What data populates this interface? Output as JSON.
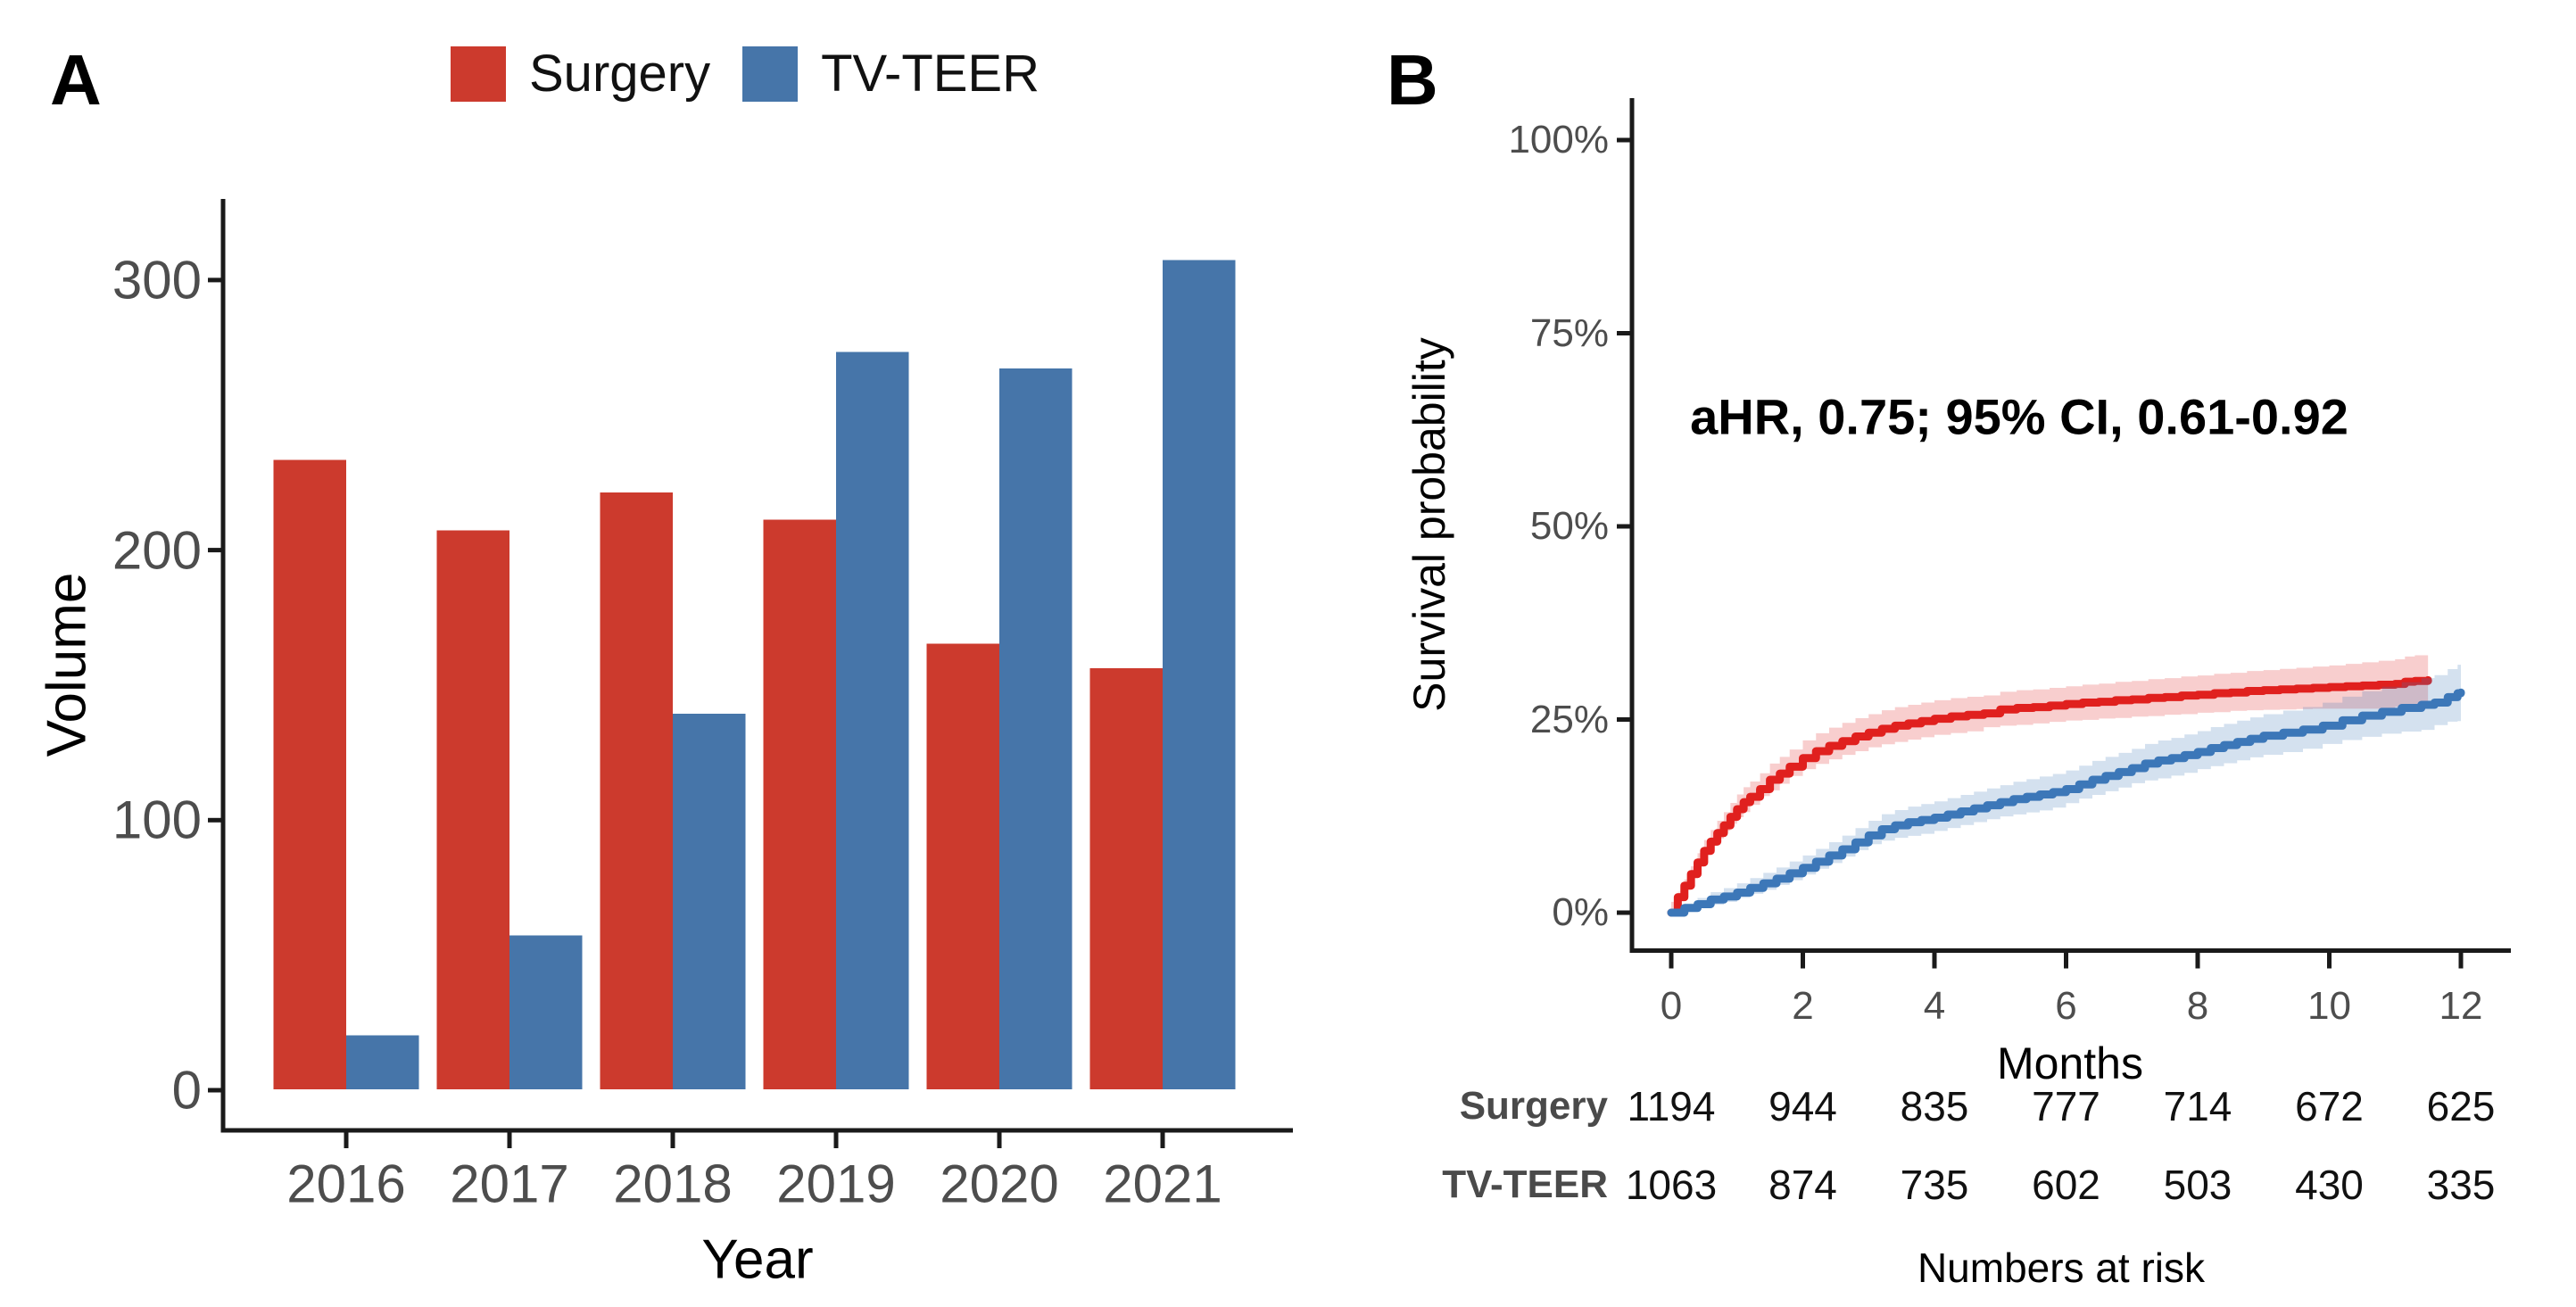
{
  "panels": {
    "a_label": "A",
    "b_label": "B"
  },
  "chart_data": [
    {
      "id": "volume-by-year",
      "type": "bar",
      "categories": [
        "2016",
        "2017",
        "2018",
        "2019",
        "2020",
        "2021"
      ],
      "series": [
        {
          "name": "Surgery",
          "color": "#CC3A2D",
          "values": [
            233,
            207,
            221,
            211,
            165,
            156
          ]
        },
        {
          "name": "TV-TEER",
          "color": "#4675A9",
          "values": [
            20,
            57,
            139,
            273,
            267,
            307
          ]
        }
      ],
      "xlabel": "Year",
      "ylabel": "Volume",
      "yticks": [
        0,
        100,
        200,
        300
      ],
      "ylim": [
        0,
        345
      ],
      "grid": false,
      "legend_position": "top"
    },
    {
      "id": "survival-by-months",
      "type": "line",
      "subtype": "kaplan-meier-step",
      "xlabel": "Months",
      "ylabel": "Survival probability",
      "annotation": "aHR, 0.75; 95% CI, 0.61-0.92",
      "xticks": [
        0,
        2,
        4,
        6,
        8,
        10,
        12
      ],
      "ytick_values": [
        0,
        25,
        50,
        75,
        100
      ],
      "ytick_labels": [
        "0%",
        "25%",
        "50%",
        "75%",
        "100%"
      ],
      "xlim": [
        0,
        12.8
      ],
      "ylim": [
        0,
        110
      ],
      "grid": false,
      "series": [
        {
          "name": "Surgery",
          "color": "#E0201E",
          "ci_color": "rgba(224,32,30,0.22)",
          "points": [
            [
              0,
              0
            ],
            [
              0.1,
              2
            ],
            [
              0.2,
              3.5
            ],
            [
              0.3,
              5
            ],
            [
              0.4,
              6.5
            ],
            [
              0.5,
              8
            ],
            [
              0.6,
              9.2
            ],
            [
              0.7,
              10.3
            ],
            [
              0.8,
              11.3
            ],
            [
              0.9,
              12.4
            ],
            [
              1,
              13.4
            ],
            [
              1.1,
              14.3
            ],
            [
              1.2,
              15
            ],
            [
              1.35,
              16
            ],
            [
              1.5,
              17.2
            ],
            [
              1.65,
              18
            ],
            [
              1.8,
              18.9
            ],
            [
              2,
              20
            ],
            [
              2.2,
              20.9
            ],
            [
              2.4,
              21.6
            ],
            [
              2.6,
              22.2
            ],
            [
              2.8,
              22.8
            ],
            [
              3,
              23.3
            ],
            [
              3.2,
              23.8
            ],
            [
              3.4,
              24.2
            ],
            [
              3.6,
              24.5
            ],
            [
              3.8,
              24.8
            ],
            [
              4,
              25.1
            ],
            [
              4.25,
              25.4
            ],
            [
              4.5,
              25.6
            ],
            [
              4.75,
              25.8
            ],
            [
              5,
              26.3
            ],
            [
              5.25,
              26.5
            ],
            [
              5.5,
              26.6
            ],
            [
              5.75,
              26.8
            ],
            [
              6,
              27
            ],
            [
              6.25,
              27.2
            ],
            [
              6.5,
              27.3
            ],
            [
              6.75,
              27.5
            ],
            [
              7,
              27.6
            ],
            [
              7.25,
              27.8
            ],
            [
              7.5,
              27.9
            ],
            [
              7.75,
              28.1
            ],
            [
              8,
              28.2
            ],
            [
              8.25,
              28.4
            ],
            [
              8.5,
              28.5
            ],
            [
              8.75,
              28.7
            ],
            [
              9,
              28.8
            ],
            [
              9.25,
              28.9
            ],
            [
              9.5,
              29
            ],
            [
              9.75,
              29.1
            ],
            [
              10,
              29.2
            ],
            [
              10.25,
              29.3
            ],
            [
              10.5,
              29.4
            ],
            [
              10.75,
              29.5
            ],
            [
              11,
              29.6
            ],
            [
              11.15,
              29.9
            ],
            [
              11.3,
              30
            ],
            [
              11.5,
              30.1
            ]
          ],
          "ci_halfwidth": [
            [
              0,
              0.4
            ],
            [
              0.5,
              1.4
            ],
            [
              1,
              1.9
            ],
            [
              1.5,
              2.1
            ],
            [
              2,
              2.3
            ],
            [
              3,
              2.4
            ],
            [
              4,
              2.4
            ],
            [
              5,
              2.3
            ],
            [
              6,
              2.3
            ],
            [
              7,
              2.4
            ],
            [
              8,
              2.5
            ],
            [
              9,
              2.6
            ],
            [
              10,
              2.8
            ],
            [
              10.5,
              3.0
            ],
            [
              11,
              3.2
            ],
            [
              11.5,
              3.4
            ]
          ]
        },
        {
          "name": "TV-TEER",
          "color": "#3C77B8",
          "ci_color": "rgba(60,119,184,0.22)",
          "points": [
            [
              0,
              0
            ],
            [
              0.2,
              0.6
            ],
            [
              0.4,
              1.1
            ],
            [
              0.6,
              1.7
            ],
            [
              0.8,
              2.1
            ],
            [
              1,
              2.6
            ],
            [
              1.2,
              3.2
            ],
            [
              1.4,
              3.8
            ],
            [
              1.6,
              4.4
            ],
            [
              1.8,
              5.1
            ],
            [
              2,
              5.8
            ],
            [
              2.2,
              6.6
            ],
            [
              2.4,
              7.4
            ],
            [
              2.6,
              8.2
            ],
            [
              2.8,
              9.1
            ],
            [
              3,
              10
            ],
            [
              3.2,
              10.8
            ],
            [
              3.4,
              11.3
            ],
            [
              3.6,
              11.7
            ],
            [
              3.8,
              12
            ],
            [
              4,
              12.3
            ],
            [
              4.2,
              12.7
            ],
            [
              4.4,
              13.1
            ],
            [
              4.6,
              13.5
            ],
            [
              4.8,
              13.9
            ],
            [
              5,
              14.3
            ],
            [
              5.2,
              14.7
            ],
            [
              5.4,
              15
            ],
            [
              5.6,
              15.3
            ],
            [
              5.8,
              15.6
            ],
            [
              6,
              16
            ],
            [
              6.2,
              16.6
            ],
            [
              6.4,
              17.2
            ],
            [
              6.6,
              17.7
            ],
            [
              6.8,
              18.2
            ],
            [
              7,
              18.7
            ],
            [
              7.2,
              19.3
            ],
            [
              7.4,
              19.7
            ],
            [
              7.6,
              20
            ],
            [
              7.8,
              20.4
            ],
            [
              8,
              20.8
            ],
            [
              8.2,
              21.3
            ],
            [
              8.4,
              21.7
            ],
            [
              8.6,
              22.1
            ],
            [
              8.8,
              22.5
            ],
            [
              9,
              22.9
            ],
            [
              9.3,
              23.3
            ],
            [
              9.6,
              23.7
            ],
            [
              9.9,
              24.2
            ],
            [
              10.2,
              24.9
            ],
            [
              10.5,
              25.5
            ],
            [
              10.8,
              26
            ],
            [
              11.1,
              26.5
            ],
            [
              11.4,
              26.9
            ],
            [
              11.6,
              27.2
            ],
            [
              11.8,
              27.9
            ],
            [
              11.95,
              28.4
            ],
            [
              12,
              28.5
            ]
          ],
          "ci_halfwidth": [
            [
              0,
              0.4
            ],
            [
              0.5,
              0.9
            ],
            [
              1,
              1.2
            ],
            [
              2,
              1.6
            ],
            [
              3,
              1.9
            ],
            [
              4,
              2.1
            ],
            [
              5,
              2.2
            ],
            [
              6,
              2.4
            ],
            [
              7,
              2.5
            ],
            [
              8,
              2.7
            ],
            [
              9,
              2.8
            ],
            [
              10,
              3.0
            ],
            [
              11,
              3.3
            ],
            [
              11.5,
              3.5
            ],
            [
              12,
              3.7
            ]
          ]
        }
      ],
      "at_risk": {
        "title": "Numbers at risk",
        "months": [
          0,
          2,
          4,
          6,
          8,
          10,
          12
        ],
        "rows": [
          {
            "name": "Surgery",
            "values": [
              "1194",
              "944",
              "835",
              "777",
              "714",
              "672",
              "625"
            ]
          },
          {
            "name": "TV-TEER",
            "values": [
              "1063",
              "874",
              "735",
              "602",
              "503",
              "430",
              "335"
            ]
          }
        ]
      }
    }
  ]
}
